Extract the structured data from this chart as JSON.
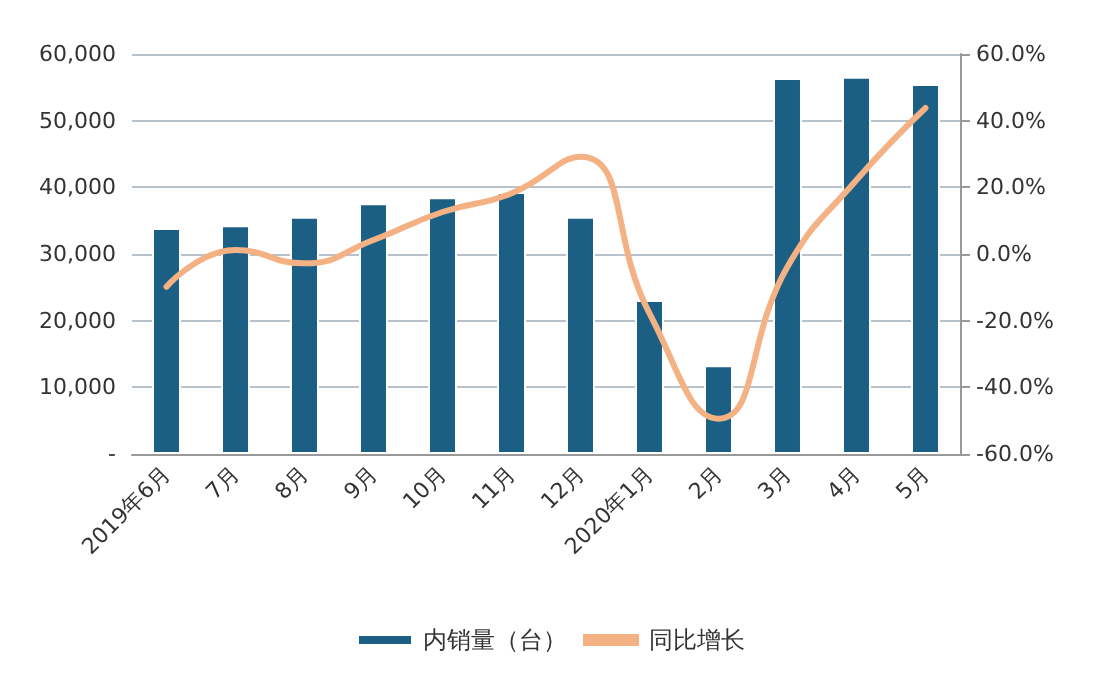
{
  "chart_data": {
    "type": "bar",
    "categories": [
      "2019年6月",
      "7月",
      "8月",
      "9月",
      "10月",
      "11月",
      "12月",
      "2020年1月",
      "2月",
      "3月",
      "4月",
      "5月"
    ],
    "series": [
      {
        "name": "内销量（台）",
        "color": "#1c5f85",
        "values": [
          33900,
          34300,
          35600,
          37600,
          38500,
          39300,
          35600,
          23100,
          13300,
          56400,
          56600,
          55500
        ]
      },
      {
        "name": "同比增长",
        "type": "line",
        "axis": "y2",
        "color": "#f4b183",
        "values": [
          -9.8,
          1.2,
          -2.8,
          4.2,
          12.6,
          18.2,
          29.2,
          -17.8,
          -49.4,
          -3.8,
          22.2,
          43.8
        ]
      }
    ],
    "ylim": [
      0,
      60000
    ],
    "yticks": [
      {
        "value": 0,
        "label": "-"
      },
      {
        "value": 10000,
        "label": "10,000"
      },
      {
        "value": 20000,
        "label": "20,000"
      },
      {
        "value": 30000,
        "label": "30,000"
      },
      {
        "value": 40000,
        "label": "40,000"
      },
      {
        "value": 50000,
        "label": "50,000"
      },
      {
        "value": 60000,
        "label": "60,000"
      }
    ],
    "y2lim": [
      -60,
      60
    ],
    "y2ticks": [
      {
        "value": -60,
        "label": "-60.0%"
      },
      {
        "value": -40,
        "label": "-40.0%"
      },
      {
        "value": -20,
        "label": "-20.0%"
      },
      {
        "value": 0,
        "label": "0.0%"
      },
      {
        "value": 20,
        "label": "20.0%"
      },
      {
        "value": 40,
        "label": "40.0%"
      },
      {
        "value": 60,
        "label": "60.0%"
      }
    ],
    "grid": "y",
    "legend": "bottom",
    "marker": "none",
    "line_style": "solid"
  }
}
